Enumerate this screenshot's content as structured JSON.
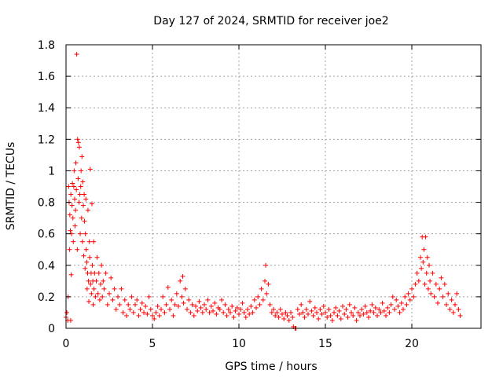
{
  "chart_data": {
    "type": "scatter",
    "title": "Day 127 of 2024, SRMTID for receiver joe2",
    "xlabel": "GPS time / hours",
    "ylabel": "SRMTID / TECUs",
    "xlim": [
      0,
      24
    ],
    "ylim": [
      0,
      1.8
    ],
    "xticks": [
      0,
      5,
      10,
      15,
      20
    ],
    "xtick_labels": [
      "0",
      "5",
      "10",
      "15",
      "20"
    ],
    "yticks": [
      0,
      0.2,
      0.4,
      0.6,
      0.8,
      1,
      1.2,
      1.4,
      1.6,
      1.8
    ],
    "ytick_labels": [
      "0",
      "0.2",
      "0.4",
      "0.6",
      "0.8",
      "1",
      "1.2",
      "1.4",
      "1.6",
      "1.8"
    ],
    "grid": true,
    "marker": "+",
    "color": "#ff0000",
    "series": [
      {
        "name": "SRMTID",
        "points": [
          [
            0.0,
            0.07
          ],
          [
            0.05,
            0.1
          ],
          [
            0.1,
            0.05
          ],
          [
            0.12,
            0.2
          ],
          [
            0.15,
            0.9
          ],
          [
            0.18,
            0.8
          ],
          [
            0.2,
            0.5
          ],
          [
            0.22,
            0.72
          ],
          [
            0.25,
            0.62
          ],
          [
            0.27,
            0.05
          ],
          [
            0.28,
            0.85
          ],
          [
            0.3,
            0.34
          ],
          [
            0.32,
            0.6
          ],
          [
            0.35,
            0.78
          ],
          [
            0.37,
            0.92
          ],
          [
            0.4,
            0.7
          ],
          [
            0.42,
            0.55
          ],
          [
            0.45,
            0.9
          ],
          [
            0.47,
            1.0
          ],
          [
            0.5,
            0.82
          ],
          [
            0.52,
            0.65
          ],
          [
            0.55,
            0.75
          ],
          [
            0.57,
            1.05
          ],
          [
            0.6,
            0.88
          ],
          [
            0.62,
            1.74
          ],
          [
            0.65,
            0.5
          ],
          [
            0.67,
            1.2
          ],
          [
            0.7,
            0.95
          ],
          [
            0.72,
            1.18
          ],
          [
            0.75,
            0.8
          ],
          [
            0.77,
            1.15
          ],
          [
            0.8,
            0.85
          ],
          [
            0.82,
            0.6
          ],
          [
            0.85,
            0.9
          ],
          [
            0.87,
            1.0
          ],
          [
            0.9,
            0.7
          ],
          [
            0.92,
            1.09
          ],
          [
            0.95,
            0.55
          ],
          [
            0.97,
            0.93
          ],
          [
            1.0,
            0.78
          ],
          [
            1.02,
            0.46
          ],
          [
            1.05,
            0.85
          ],
          [
            1.07,
            0.68
          ],
          [
            1.1,
            0.38
          ],
          [
            1.12,
            0.6
          ],
          [
            1.15,
            0.82
          ],
          [
            1.17,
            0.5
          ],
          [
            1.2,
            0.42
          ],
          [
            1.22,
            0.25
          ],
          [
            1.25,
            0.35
          ],
          [
            1.27,
            0.75
          ],
          [
            1.3,
            0.3
          ],
          [
            1.32,
            0.17
          ],
          [
            1.35,
            0.55
          ],
          [
            1.37,
            0.45
          ],
          [
            1.4,
            1.01
          ],
          [
            1.42,
            0.28
          ],
          [
            1.45,
            0.35
          ],
          [
            1.47,
            0.22
          ],
          [
            1.5,
            0.79
          ],
          [
            1.52,
            0.4
          ],
          [
            1.55,
            0.3
          ],
          [
            1.57,
            0.15
          ],
          [
            1.6,
            0.55
          ],
          [
            1.62,
            0.25
          ],
          [
            1.65,
            0.35
          ],
          [
            1.7,
            0.2
          ],
          [
            1.75,
            0.3
          ],
          [
            1.8,
            0.45
          ],
          [
            1.85,
            0.22
          ],
          [
            1.9,
            0.35
          ],
          [
            1.95,
            0.18
          ],
          [
            2.0,
            0.28
          ],
          [
            2.05,
            0.4
          ],
          [
            2.1,
            0.2
          ],
          [
            2.15,
            0.3
          ],
          [
            2.2,
            0.25
          ],
          [
            2.3,
            0.35
          ],
          [
            2.4,
            0.15
          ],
          [
            2.5,
            0.22
          ],
          [
            2.6,
            0.32
          ],
          [
            2.7,
            0.18
          ],
          [
            2.8,
            0.25
          ],
          [
            2.9,
            0.12
          ],
          [
            3.0,
            0.2
          ],
          [
            3.1,
            0.15
          ],
          [
            3.2,
            0.25
          ],
          [
            3.3,
            0.1
          ],
          [
            3.4,
            0.18
          ],
          [
            3.5,
            0.08
          ],
          [
            3.6,
            0.15
          ],
          [
            3.7,
            0.12
          ],
          [
            3.8,
            0.2
          ],
          [
            3.9,
            0.1
          ],
          [
            4.0,
            0.15
          ],
          [
            4.1,
            0.18
          ],
          [
            4.2,
            0.08
          ],
          [
            4.3,
            0.12
          ],
          [
            4.4,
            0.16
          ],
          [
            4.5,
            0.1
          ],
          [
            4.6,
            0.14
          ],
          [
            4.7,
            0.09
          ],
          [
            4.8,
            0.2
          ],
          [
            4.9,
            0.12
          ],
          [
            5.0,
            0.08
          ],
          [
            5.1,
            0.06
          ],
          [
            5.2,
            0.1
          ],
          [
            5.3,
            0.14
          ],
          [
            5.4,
            0.08
          ],
          [
            5.5,
            0.12
          ],
          [
            5.6,
            0.2
          ],
          [
            5.7,
            0.1
          ],
          [
            5.8,
            0.15
          ],
          [
            5.9,
            0.26
          ],
          [
            6.0,
            0.12
          ],
          [
            6.1,
            0.18
          ],
          [
            6.2,
            0.08
          ],
          [
            6.3,
            0.15
          ],
          [
            6.4,
            0.22
          ],
          [
            6.5,
            0.14
          ],
          [
            6.6,
            0.3
          ],
          [
            6.7,
            0.2
          ],
          [
            6.75,
            0.33
          ],
          [
            6.8,
            0.16
          ],
          [
            6.9,
            0.25
          ],
          [
            7.0,
            0.12
          ],
          [
            7.1,
            0.18
          ],
          [
            7.2,
            0.1
          ],
          [
            7.3,
            0.15
          ],
          [
            7.4,
            0.08
          ],
          [
            7.5,
            0.14
          ],
          [
            7.6,
            0.11
          ],
          [
            7.7,
            0.17
          ],
          [
            7.8,
            0.13
          ],
          [
            7.9,
            0.1
          ],
          [
            8.0,
            0.15
          ],
          [
            8.1,
            0.12
          ],
          [
            8.2,
            0.18
          ],
          [
            8.3,
            0.1
          ],
          [
            8.4,
            0.14
          ],
          [
            8.5,
            0.11
          ],
          [
            8.6,
            0.16
          ],
          [
            8.7,
            0.09
          ],
          [
            8.8,
            0.13
          ],
          [
            8.9,
            0.12
          ],
          [
            9.0,
            0.18
          ],
          [
            9.1,
            0.1
          ],
          [
            9.2,
            0.15
          ],
          [
            9.3,
            0.08
          ],
          [
            9.4,
            0.12
          ],
          [
            9.5,
            0.1
          ],
          [
            9.6,
            0.14
          ],
          [
            9.7,
            0.07
          ],
          [
            9.8,
            0.11
          ],
          [
            9.9,
            0.13
          ],
          [
            10.0,
            0.09
          ],
          [
            10.1,
            0.12
          ],
          [
            10.2,
            0.16
          ],
          [
            10.3,
            0.1
          ],
          [
            10.4,
            0.07
          ],
          [
            10.5,
            0.12
          ],
          [
            10.6,
            0.09
          ],
          [
            10.7,
            0.14
          ],
          [
            10.8,
            0.1
          ],
          [
            10.9,
            0.18
          ],
          [
            11.0,
            0.13
          ],
          [
            11.1,
            0.2
          ],
          [
            11.2,
            0.15
          ],
          [
            11.3,
            0.25
          ],
          [
            11.4,
            0.18
          ],
          [
            11.5,
            0.3
          ],
          [
            11.55,
            0.4
          ],
          [
            11.6,
            0.22
          ],
          [
            11.7,
            0.28
          ],
          [
            11.8,
            0.15
          ],
          [
            11.9,
            0.1
          ],
          [
            12.0,
            0.12
          ],
          [
            12.1,
            0.08
          ],
          [
            12.2,
            0.1
          ],
          [
            12.3,
            0.07
          ],
          [
            12.4,
            0.12
          ],
          [
            12.5,
            0.09
          ],
          [
            12.6,
            0.06
          ],
          [
            12.7,
            0.1
          ],
          [
            12.8,
            0.08
          ],
          [
            12.9,
            0.05
          ],
          [
            13.0,
            0.1
          ],
          [
            13.1,
            0.07
          ],
          [
            13.15,
            0.01
          ],
          [
            13.25,
            0.0
          ],
          [
            13.3,
            0.0
          ],
          [
            13.4,
            0.12
          ],
          [
            13.5,
            0.09
          ],
          [
            13.6,
            0.15
          ],
          [
            13.7,
            0.1
          ],
          [
            13.8,
            0.07
          ],
          [
            13.9,
            0.12
          ],
          [
            14.0,
            0.09
          ],
          [
            14.1,
            0.17
          ],
          [
            14.2,
            0.11
          ],
          [
            14.3,
            0.08
          ],
          [
            14.4,
            0.13
          ],
          [
            14.5,
            0.1
          ],
          [
            14.6,
            0.06
          ],
          [
            14.7,
            0.12
          ],
          [
            14.8,
            0.09
          ],
          [
            14.9,
            0.14
          ],
          [
            15.0,
            0.1
          ],
          [
            15.1,
            0.07
          ],
          [
            15.2,
            0.12
          ],
          [
            15.3,
            0.08
          ],
          [
            15.4,
            0.05
          ],
          [
            15.5,
            0.1
          ],
          [
            15.6,
            0.13
          ],
          [
            15.7,
            0.08
          ],
          [
            15.8,
            0.11
          ],
          [
            15.9,
            0.06
          ],
          [
            16.0,
            0.14
          ],
          [
            16.1,
            0.09
          ],
          [
            16.2,
            0.12
          ],
          [
            16.3,
            0.07
          ],
          [
            16.4,
            0.15
          ],
          [
            16.5,
            0.1
          ],
          [
            16.6,
            0.08
          ],
          [
            16.7,
            0.13
          ],
          [
            16.8,
            0.05
          ],
          [
            16.9,
            0.1
          ],
          [
            17.0,
            0.08
          ],
          [
            17.1,
            0.12
          ],
          [
            17.2,
            0.09
          ],
          [
            17.3,
            0.14
          ],
          [
            17.4,
            0.1
          ],
          [
            17.5,
            0.07
          ],
          [
            17.6,
            0.11
          ],
          [
            17.7,
            0.15
          ],
          [
            17.8,
            0.1
          ],
          [
            17.9,
            0.13
          ],
          [
            18.0,
            0.08
          ],
          [
            18.1,
            0.12
          ],
          [
            18.2,
            0.1
          ],
          [
            18.3,
            0.16
          ],
          [
            18.4,
            0.11
          ],
          [
            18.5,
            0.08
          ],
          [
            18.6,
            0.13
          ],
          [
            18.7,
            0.1
          ],
          [
            18.8,
            0.15
          ],
          [
            18.9,
            0.2
          ],
          [
            19.0,
            0.12
          ],
          [
            19.1,
            0.18
          ],
          [
            19.2,
            0.14
          ],
          [
            19.3,
            0.1
          ],
          [
            19.4,
            0.16
          ],
          [
            19.5,
            0.12
          ],
          [
            19.6,
            0.2
          ],
          [
            19.7,
            0.15
          ],
          [
            19.8,
            0.22
          ],
          [
            19.9,
            0.18
          ],
          [
            20.0,
            0.25
          ],
          [
            20.1,
            0.2
          ],
          [
            20.2,
            0.28
          ],
          [
            20.3,
            0.35
          ],
          [
            20.4,
            0.3
          ],
          [
            20.5,
            0.45
          ],
          [
            20.55,
            0.38
          ],
          [
            20.6,
            0.58
          ],
          [
            20.65,
            0.42
          ],
          [
            20.7,
            0.5
          ],
          [
            20.75,
            0.28
          ],
          [
            20.8,
            0.58
          ],
          [
            20.85,
            0.35
          ],
          [
            20.9,
            0.45
          ],
          [
            20.95,
            0.25
          ],
          [
            21.0,
            0.4
          ],
          [
            21.05,
            0.3
          ],
          [
            21.1,
            0.22
          ],
          [
            21.2,
            0.35
          ],
          [
            21.3,
            0.2
          ],
          [
            21.4,
            0.28
          ],
          [
            21.5,
            0.16
          ],
          [
            21.6,
            0.25
          ],
          [
            21.7,
            0.32
          ],
          [
            21.8,
            0.2
          ],
          [
            21.9,
            0.28
          ],
          [
            22.0,
            0.15
          ],
          [
            22.1,
            0.22
          ],
          [
            22.2,
            0.12
          ],
          [
            22.3,
            0.18
          ],
          [
            22.4,
            0.1
          ],
          [
            22.5,
            0.15
          ],
          [
            22.6,
            0.22
          ],
          [
            22.7,
            0.12
          ],
          [
            22.8,
            0.08
          ]
        ]
      }
    ]
  }
}
